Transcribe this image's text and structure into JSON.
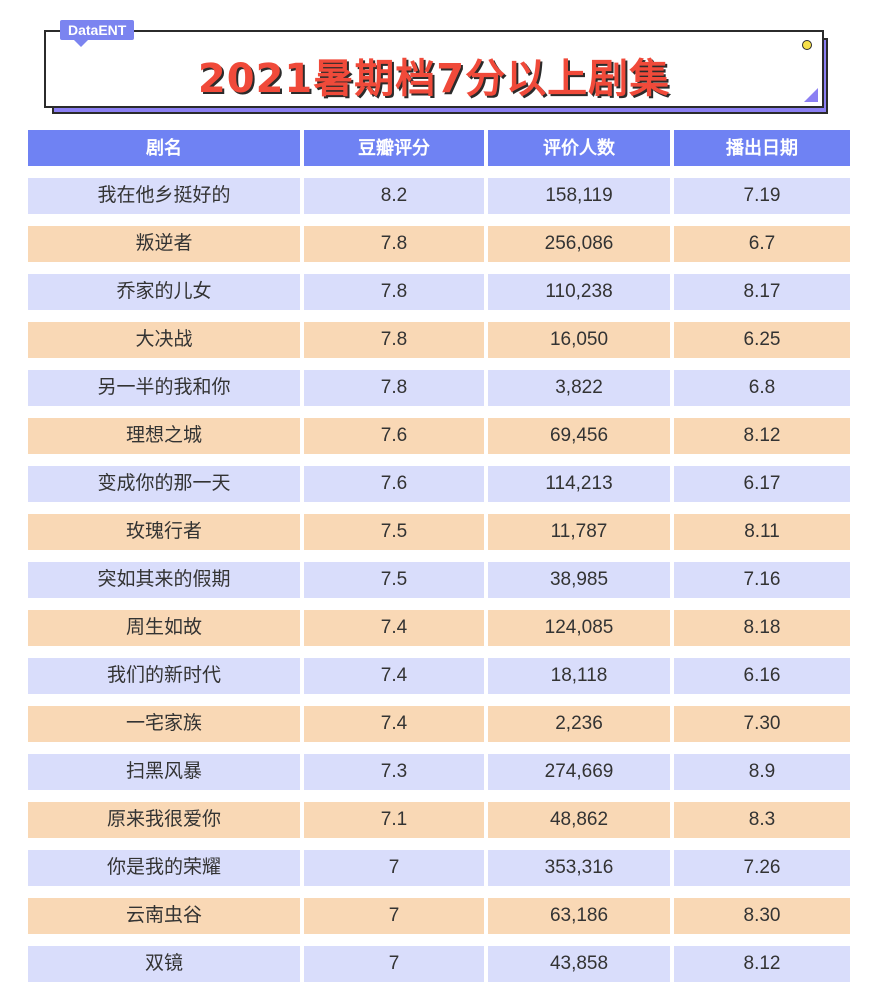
{
  "header": {
    "brand": "DataENT",
    "title": "2021暑期档7分以上剧集"
  },
  "colors": {
    "header_row": "#6f82f3",
    "row_blue": "#d9ddfb",
    "row_orange": "#f9d8b5",
    "title_red": "#f04a3a",
    "shadow_purple": "#8b7ff3"
  },
  "table": {
    "columns": [
      "剧名",
      "豆瓣评分",
      "评价人数",
      "播出日期"
    ],
    "rows": [
      [
        "我在他乡挺好的",
        "8.2",
        "158,119",
        "7.19"
      ],
      [
        "叛逆者",
        "7.8",
        "256,086",
        "6.7"
      ],
      [
        "乔家的儿女",
        "7.8",
        "110,238",
        "8.17"
      ],
      [
        "大决战",
        "7.8",
        "16,050",
        "6.25"
      ],
      [
        "另一半的我和你",
        "7.8",
        "3,822",
        "6.8"
      ],
      [
        "理想之城",
        "7.6",
        "69,456",
        "8.12"
      ],
      [
        "变成你的那一天",
        "7.6",
        "114,213",
        "6.17"
      ],
      [
        "玫瑰行者",
        "7.5",
        "11,787",
        "8.11"
      ],
      [
        "突如其来的假期",
        "7.5",
        "38,985",
        "7.16"
      ],
      [
        "周生如故",
        "7.4",
        "124,085",
        "8.18"
      ],
      [
        "我们的新时代",
        "7.4",
        "18,118",
        "6.16"
      ],
      [
        "一宅家族",
        "7.4",
        "2,236",
        "7.30"
      ],
      [
        "扫黑风暴",
        "7.3",
        "274,669",
        "8.9"
      ],
      [
        "原来我很爱你",
        "7.1",
        "48,862",
        "8.3"
      ],
      [
        "你是我的荣耀",
        "7",
        "353,316",
        "7.26"
      ],
      [
        "云南虫谷",
        "7",
        "63,186",
        "8.30"
      ],
      [
        "双镜",
        "7",
        "43,858",
        "8.12"
      ]
    ]
  }
}
